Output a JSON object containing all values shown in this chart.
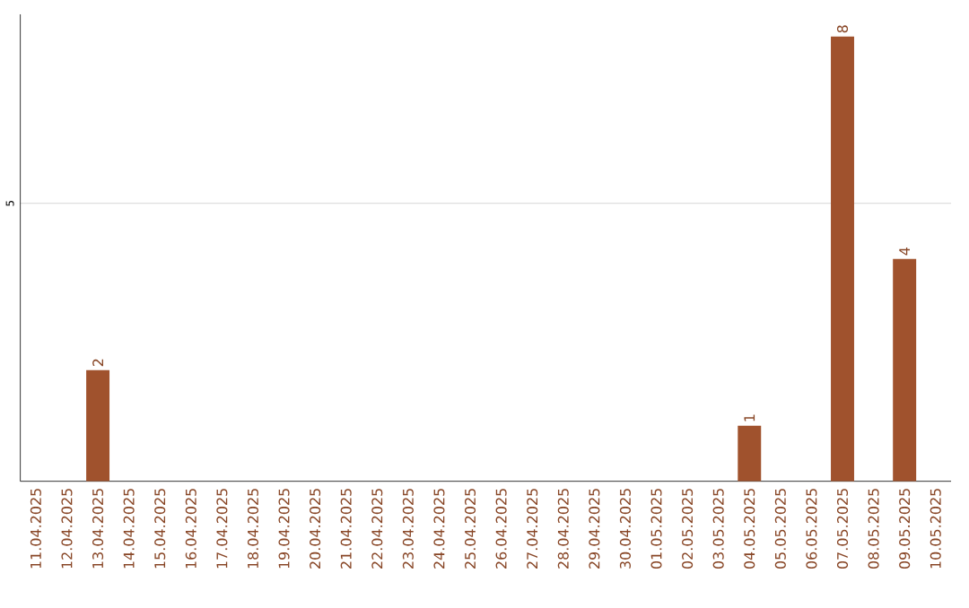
{
  "chart_data": {
    "type": "bar",
    "categories": [
      "11.04.2025",
      "12.04.2025",
      "13.04.2025",
      "14.04.2025",
      "15.04.2025",
      "16.04.2025",
      "17.04.2025",
      "18.04.2025",
      "19.04.2025",
      "20.04.2025",
      "21.04.2025",
      "22.04.2025",
      "23.04.2025",
      "24.04.2025",
      "25.04.2025",
      "26.04.2025",
      "27.04.2025",
      "28.04.2025",
      "29.04.2025",
      "30.04.2025",
      "01.05.2025",
      "02.05.2025",
      "03.05.2025",
      "04.05.2025",
      "05.05.2025",
      "06.05.2025",
      "07.05.2025",
      "08.05.2025",
      "09.05.2025",
      "10.05.2025"
    ],
    "values": [
      0,
      0,
      2,
      0,
      0,
      0,
      0,
      0,
      0,
      0,
      0,
      0,
      0,
      0,
      0,
      0,
      0,
      0,
      0,
      0,
      0,
      0,
      0,
      1,
      0,
      0,
      8,
      0,
      4,
      0
    ],
    "value_labels": [
      null,
      null,
      "2",
      null,
      null,
      null,
      null,
      null,
      null,
      null,
      null,
      null,
      null,
      null,
      null,
      null,
      null,
      null,
      null,
      null,
      null,
      null,
      null,
      "1",
      null,
      null,
      "8",
      null,
      "4",
      null
    ],
    "color": "#a0522d",
    "ylim": [
      0,
      8.4
    ],
    "yticks": [
      5
    ],
    "grid": "y"
  }
}
